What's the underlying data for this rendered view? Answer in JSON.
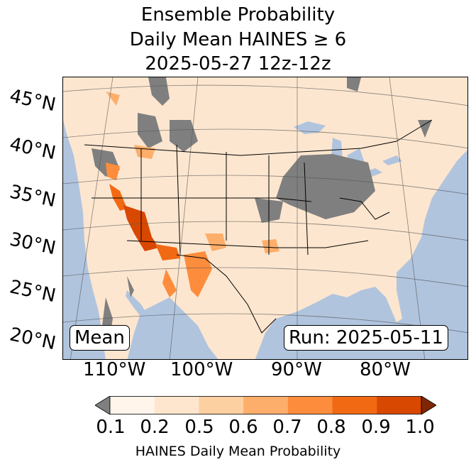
{
  "title": {
    "line1": "Ensemble Probability",
    "line2": "Daily Mean HAINES ≥ 6",
    "line3": "2025-05-27 12z-12z"
  },
  "map": {
    "latitude_labels": [
      "45°N",
      "40°N",
      "35°N",
      "30°N",
      "25°N",
      "20°N"
    ],
    "longitude_labels": [
      "110°W",
      "100°W",
      "90°W",
      "80°W"
    ],
    "ocean_color": "#b0c4de",
    "land_base_color": "#fde6cf",
    "missing_color": "#7f7f7f"
  },
  "inset": {
    "mean_label": "Mean",
    "run_label": "Run: 2025-05-11"
  },
  "colorbar": {
    "label": "HAINES Daily Mean Probability",
    "ticks": [
      "0.1",
      "0.2",
      "0.5",
      "0.6",
      "0.7",
      "0.8",
      "0.9",
      "1.0"
    ],
    "colors": [
      "#fff5eb",
      "#fee6ce",
      "#fdd0a2",
      "#fdae6b",
      "#fd8d3c",
      "#f16913",
      "#d94801",
      "#a63603"
    ],
    "under_color": "#7f7f7f",
    "over_color": "#7f2704"
  }
}
